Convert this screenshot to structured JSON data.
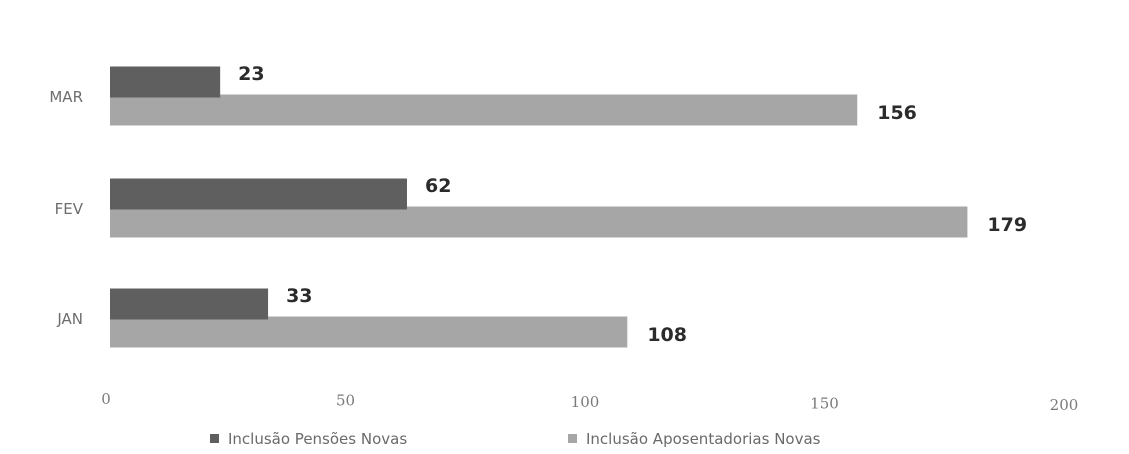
{
  "chart_data": {
    "type": "bar",
    "orientation": "horizontal",
    "categories": [
      "JAN",
      "FEV",
      "MAR"
    ],
    "series": [
      {
        "name": "Inclusão Pensões Novas",
        "values": [
          33,
          62,
          23
        ],
        "color": "#5f5f5f"
      },
      {
        "name": "Inclusão Aposentadorias Novas",
        "values": [
          108,
          179,
          156
        ],
        "color": "#a6a6a6"
      }
    ],
    "xlim": [
      0,
      200
    ],
    "xticks": [
      0,
      50,
      100,
      150,
      200
    ],
    "xtick_labels": [
      "0",
      "50",
      "100",
      "150",
      "200"
    ],
    "title": "",
    "xlabel": "",
    "ylabel": "",
    "grid": false,
    "legend_position": "bottom",
    "data_labels": true
  }
}
